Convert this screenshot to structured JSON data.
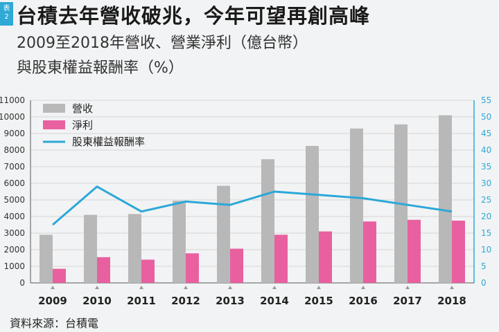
{
  "header": {
    "tag": [
      "表",
      "2"
    ],
    "title": "台積去年營收破兆，今年可望再創高峰",
    "subtitle_line1": "2009至2018年營收、營業淨利（億台幣）",
    "subtitle_line2": "與股東權益報酬率（%）"
  },
  "source": "資料來源：台積電",
  "colors": {
    "revenue": "#b8b8b8",
    "profit": "#e8609f",
    "roe": "#2ba8d8",
    "right_axis": "#2ba8d8",
    "grid": "#d6d6d6"
  },
  "chart_data": {
    "type": "bar",
    "categories": [
      "2009",
      "2010",
      "2011",
      "2012",
      "2013",
      "2014",
      "2015",
      "2016",
      "2017",
      "2018"
    ],
    "series": [
      {
        "name": "營收",
        "type": "bar",
        "axis": "left",
        "values": [
          2900,
          4100,
          4150,
          4950,
          5850,
          7450,
          8250,
          9300,
          9550,
          10100
        ]
      },
      {
        "name": "淨利",
        "type": "bar",
        "axis": "left",
        "values": [
          850,
          1550,
          1400,
          1780,
          2060,
          2900,
          3100,
          3700,
          3800,
          3750
        ]
      },
      {
        "name": "股東權益報酬率",
        "type": "line",
        "axis": "right",
        "values": [
          17.5,
          29,
          21.5,
          24.5,
          23.5,
          27.5,
          26.5,
          25.5,
          23.5,
          21.5
        ]
      }
    ],
    "yleft": {
      "min": 0,
      "max": 11000,
      "ticks": [
        "0",
        "1000",
        "2000",
        "3000",
        "4000",
        "5000",
        "6000",
        "7000",
        "8000",
        "9000",
        "10000",
        "11000"
      ]
    },
    "yright": {
      "min": 0,
      "max": 55,
      "ticks": [
        "0",
        "5",
        "10",
        "15",
        "20",
        "25",
        "30",
        "35",
        "40",
        "45",
        "50",
        "55"
      ]
    },
    "legend_position": "top-left",
    "grid": true
  }
}
